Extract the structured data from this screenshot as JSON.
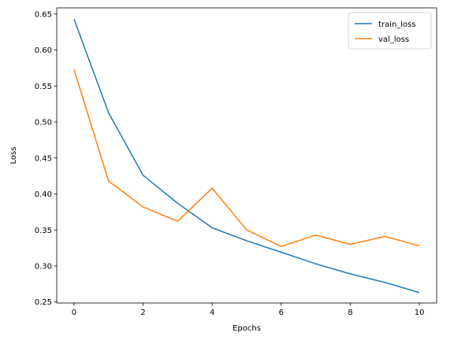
{
  "chart_data": {
    "type": "line",
    "title": "",
    "xlabel": "Epochs",
    "ylabel": "Loss",
    "x": [
      0,
      1,
      2,
      3,
      4,
      5,
      6,
      7,
      8,
      9,
      10
    ],
    "xlim": [
      -0.5,
      10.5
    ],
    "ylim": [
      0.2485,
      0.6585
    ],
    "xticks": [
      0,
      2,
      4,
      6,
      8,
      10
    ],
    "xtick_labels": [
      "0",
      "2",
      "4",
      "6",
      "8",
      "10"
    ],
    "yticks": [
      0.25,
      0.3,
      0.35,
      0.4,
      0.45,
      0.5,
      0.55,
      0.6,
      0.65
    ],
    "ytick_labels": [
      "0.25",
      "0.30",
      "0.35",
      "0.40",
      "0.45",
      "0.50",
      "0.55",
      "0.60",
      "0.65"
    ],
    "grid": false,
    "legend_position": "top-right",
    "series": [
      {
        "name": "train_loss",
        "color": "#1f77b4",
        "values": [
          0.643,
          0.513,
          0.426,
          0.387,
          0.353,
          0.335,
          0.319,
          0.303,
          0.289,
          0.277,
          0.263
        ]
      },
      {
        "name": "val_loss",
        "color": "#ff7f0e",
        "values": [
          0.573,
          0.418,
          0.382,
          0.362,
          0.408,
          0.35,
          0.327,
          0.343,
          0.33,
          0.341,
          0.328
        ]
      }
    ]
  }
}
